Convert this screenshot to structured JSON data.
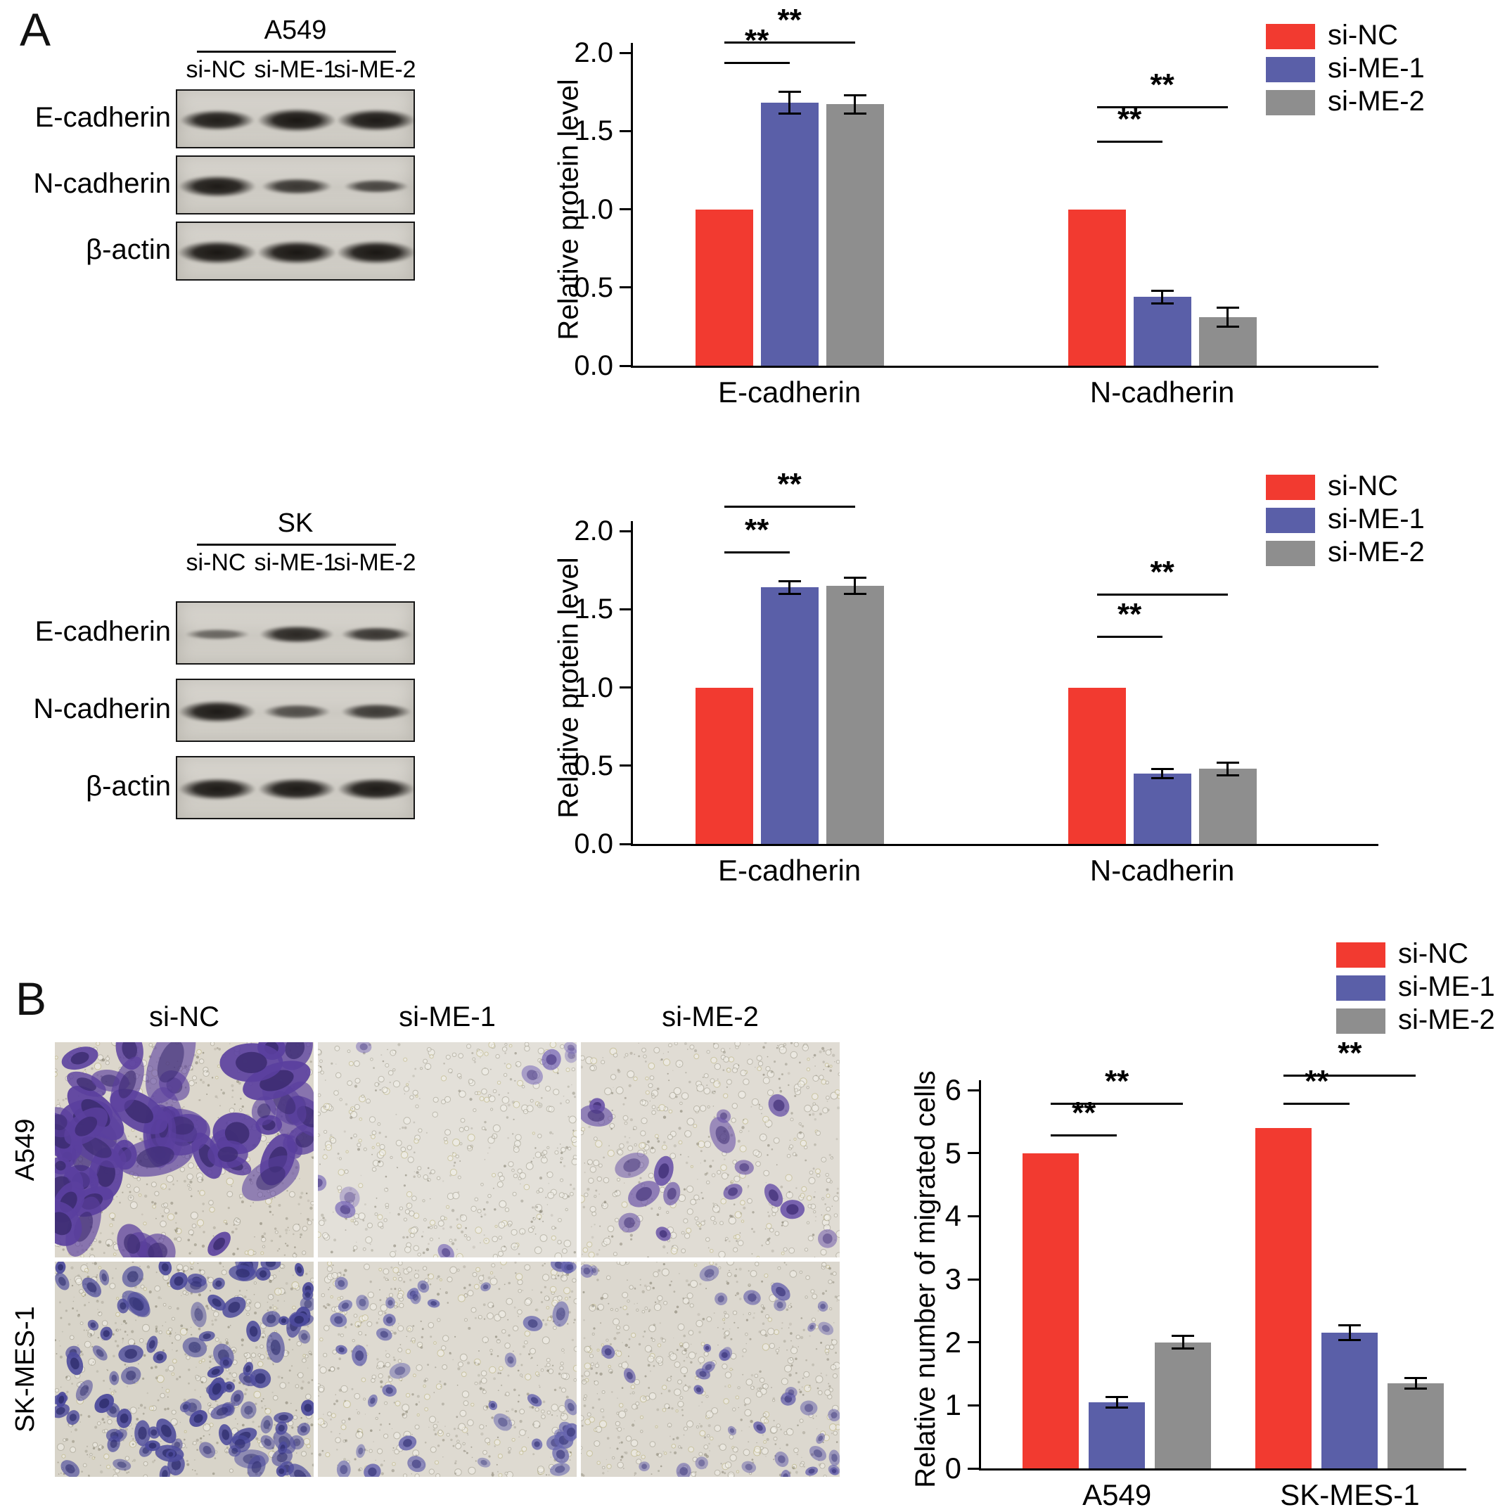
{
  "panels": {
    "a_label": "A",
    "b_label": "B"
  },
  "colors": {
    "si_nc": "#f23a30",
    "si_me_1": "#5a5fa8",
    "si_me_2": "#8e8e8e",
    "axis": "#000000"
  },
  "legend_items": [
    {
      "label": "si-NC",
      "color": "#f23a30"
    },
    {
      "label": "si-ME-1",
      "color": "#5a5fa8"
    },
    {
      "label": "si-ME-2",
      "color": "#8e8e8e"
    }
  ],
  "western_blots": [
    {
      "cell_line": "A549",
      "lanes": [
        "si-NC",
        "si-ME-1",
        "si-ME-2"
      ],
      "rows": [
        {
          "protein": "E-cadherin",
          "bands": [
            {
              "w": 106,
              "h": 30,
              "o": 0.93
            },
            {
              "w": 112,
              "h": 34,
              "o": 0.97
            },
            {
              "w": 112,
              "h": 32,
              "o": 0.95
            }
          ]
        },
        {
          "protein": "N-cadherin",
          "bands": [
            {
              "w": 110,
              "h": 32,
              "o": 0.95
            },
            {
              "w": 100,
              "h": 24,
              "o": 0.8
            },
            {
              "w": 92,
              "h": 20,
              "o": 0.72
            }
          ]
        },
        {
          "protein": "β-actin",
          "bands": [
            {
              "w": 112,
              "h": 34,
              "o": 0.97
            },
            {
              "w": 112,
              "h": 34,
              "o": 0.97
            },
            {
              "w": 112,
              "h": 34,
              "o": 0.97
            }
          ]
        }
      ]
    },
    {
      "cell_line": "SK",
      "lanes": [
        "si-NC",
        "si-ME-1",
        "si-ME-2"
      ],
      "rows": [
        {
          "protein": "E-cadherin",
          "bands": [
            {
              "w": 92,
              "h": 16,
              "o": 0.55
            },
            {
              "w": 106,
              "h": 26,
              "o": 0.88
            },
            {
              "w": 100,
              "h": 22,
              "o": 0.8
            }
          ]
        },
        {
          "protein": "N-cadherin",
          "bands": [
            {
              "w": 110,
              "h": 32,
              "o": 0.95
            },
            {
              "w": 96,
              "h": 22,
              "o": 0.68
            },
            {
              "w": 100,
              "h": 24,
              "o": 0.78
            }
          ]
        },
        {
          "protein": "β-actin",
          "bands": [
            {
              "w": 110,
              "h": 32,
              "o": 0.95
            },
            {
              "w": 110,
              "h": 32,
              "o": 0.95
            },
            {
              "w": 110,
              "h": 32,
              "o": 0.95
            }
          ]
        }
      ]
    }
  ],
  "chart_data": [
    {
      "id": "protein-a549",
      "type": "bar",
      "title": "",
      "ylabel": "Relative protein level",
      "categories": [
        "E-cadherin",
        "N-cadherin"
      ],
      "series": [
        {
          "name": "si-NC",
          "color": "#f23a30",
          "values": [
            1.0,
            1.0
          ],
          "errors": [
            0,
            0
          ]
        },
        {
          "name": "si-ME-1",
          "color": "#5a5fa8",
          "values": [
            1.68,
            0.44
          ],
          "errors": [
            0.07,
            0.04
          ]
        },
        {
          "name": "si-ME-2",
          "color": "#8e8e8e",
          "values": [
            1.67,
            0.31
          ],
          "errors": [
            0.06,
            0.06
          ]
        }
      ],
      "ylim": [
        0,
        2.0
      ],
      "yticks": [
        "0.0",
        "0.5",
        "1.0",
        "1.5",
        "2.0"
      ],
      "grid": false,
      "legend_position": "top-right",
      "significance": [
        {
          "category": 0,
          "from": 0,
          "to": 1,
          "label": "**",
          "y": 1.94
        },
        {
          "category": 0,
          "from": 0,
          "to": 2,
          "label": "**",
          "y": 2.07
        },
        {
          "category": 1,
          "from": 0,
          "to": 1,
          "label": "**",
          "y": 1.44
        },
        {
          "category": 1,
          "from": 0,
          "to": 2,
          "label": "**",
          "y": 1.66
        }
      ]
    },
    {
      "id": "protein-sk",
      "type": "bar",
      "title": "",
      "ylabel": "Relative protein level",
      "categories": [
        "E-cadherin",
        "N-cadherin"
      ],
      "series": [
        {
          "name": "si-NC",
          "color": "#f23a30",
          "values": [
            1.0,
            1.0
          ],
          "errors": [
            0,
            0
          ]
        },
        {
          "name": "si-ME-1",
          "color": "#5a5fa8",
          "values": [
            1.64,
            0.45
          ],
          "errors": [
            0.04,
            0.03
          ]
        },
        {
          "name": "si-ME-2",
          "color": "#8e8e8e",
          "values": [
            1.65,
            0.48
          ],
          "errors": [
            0.05,
            0.04
          ]
        }
      ],
      "ylim": [
        0,
        2.0
      ],
      "yticks": [
        "0.0",
        "0.5",
        "1.0",
        "1.5",
        "2.0"
      ],
      "grid": false,
      "legend_position": "top-right",
      "significance": [
        {
          "category": 0,
          "from": 0,
          "to": 1,
          "label": "**",
          "y": 1.87
        },
        {
          "category": 0,
          "from": 0,
          "to": 2,
          "label": "**",
          "y": 2.16
        },
        {
          "category": 1,
          "from": 0,
          "to": 1,
          "label": "**",
          "y": 1.33
        },
        {
          "category": 1,
          "from": 0,
          "to": 2,
          "label": "**",
          "y": 1.6
        }
      ]
    },
    {
      "id": "migration",
      "type": "bar",
      "title": "",
      "ylabel": "Relative number of migrated cells",
      "categories": [
        "A549",
        "SK-MES-1"
      ],
      "series": [
        {
          "name": "si-NC",
          "color": "#f23a30",
          "values": [
            5.0,
            5.4
          ],
          "errors": [
            0,
            0
          ]
        },
        {
          "name": "si-ME-1",
          "color": "#5a5fa8",
          "values": [
            1.05,
            2.15
          ],
          "errors": [
            0.08,
            0.12
          ]
        },
        {
          "name": "si-ME-2",
          "color": "#8e8e8e",
          "values": [
            2.0,
            1.35
          ],
          "errors": [
            0.1,
            0.08
          ]
        }
      ],
      "ylim": [
        0,
        6
      ],
      "yticks": [
        "0",
        "1",
        "2",
        "3",
        "4",
        "5",
        "6"
      ],
      "grid": false,
      "legend_position": "top-right",
      "significance": [
        {
          "category": 0,
          "from": 0,
          "to": 1,
          "label": "**",
          "y": 5.3
        },
        {
          "category": 0,
          "from": 0,
          "to": 2,
          "label": "**",
          "y": 5.8
        },
        {
          "category": 1,
          "from": 0,
          "to": 1,
          "label": "**",
          "y": 5.8
        },
        {
          "category": 1,
          "from": 0,
          "to": 2,
          "label": "**",
          "y": 6.25
        }
      ]
    }
  ],
  "micrographs": {
    "col_labels": [
      "si-NC",
      "si-ME-1",
      "si-ME-2"
    ],
    "row_labels": [
      "A549",
      "SK-MES-1"
    ],
    "images": [
      [
        {
          "cells": 58,
          "size": [
            11,
            30
          ],
          "elong": 2.2,
          "color": "#5a3f9e",
          "nucleus": "#3a2a6e",
          "alpha": [
            0.55,
            0.95
          ],
          "bg": "#dcd7cc",
          "pores": 260,
          "specks": 430,
          "seed": 11
        },
        {
          "cells": 9,
          "size": [
            8,
            15
          ],
          "elong": 1.6,
          "color": "#7a6ab8",
          "nucleus": "#4a3a84",
          "alpha": [
            0.4,
            0.8
          ],
          "bg": "#e3e0d9",
          "pores": 340,
          "specks": 210,
          "seed": 22
        },
        {
          "cells": 16,
          "size": [
            9,
            17
          ],
          "elong": 1.7,
          "color": "#6a53a8",
          "nucleus": "#413077",
          "alpha": [
            0.5,
            0.9
          ],
          "bg": "#e0dcd4",
          "pores": 320,
          "specks": 260,
          "seed": 33
        }
      ],
      [
        {
          "cells": 105,
          "size": [
            6,
            14
          ],
          "elong": 1.8,
          "color": "#4c4a9c",
          "nucleus": "#2f2e6e",
          "alpha": [
            0.5,
            0.95
          ],
          "bg": "#d8d4c9",
          "pores": 240,
          "specks": 520,
          "seed": 44
        },
        {
          "cells": 42,
          "size": [
            6,
            12
          ],
          "elong": 1.6,
          "color": "#6664ae",
          "nucleus": "#3d3b7e",
          "alpha": [
            0.45,
            0.85
          ],
          "bg": "#dedad1",
          "pores": 300,
          "specks": 320,
          "seed": 55
        },
        {
          "cells": 36,
          "size": [
            5,
            11
          ],
          "elong": 1.5,
          "color": "#6660ac",
          "nucleus": "#3c377c",
          "alpha": [
            0.45,
            0.85
          ],
          "bg": "#dcd8cf",
          "pores": 300,
          "specks": 340,
          "seed": 66
        }
      ]
    ]
  }
}
